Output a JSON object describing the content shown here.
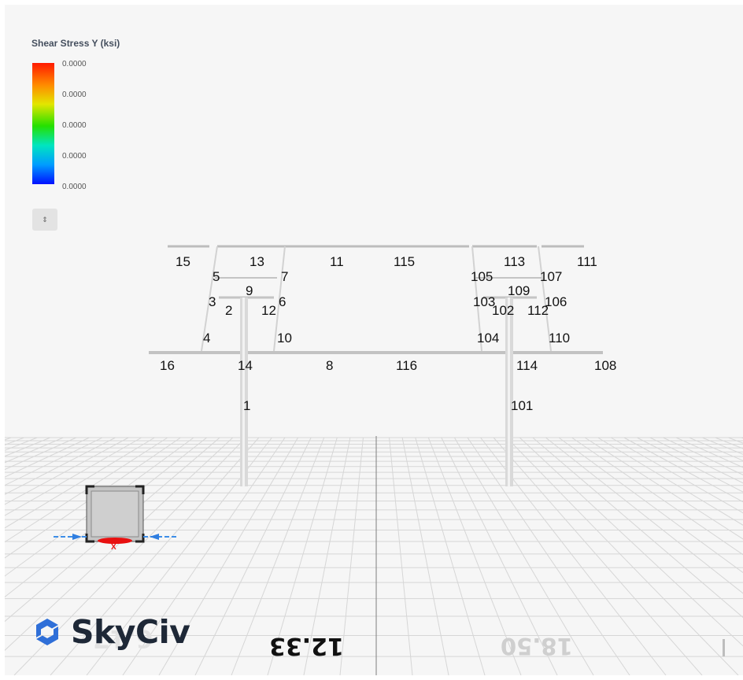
{
  "legend": {
    "title": "Shear Stress Y (ksi)",
    "values": [
      "0.0000",
      "0.0000",
      "0.0000",
      "0.0000",
      "0.0000"
    ],
    "colors": [
      "#ff1a00",
      "#ff8a00",
      "#e3e600",
      "#25e000",
      "#00e5c0",
      "#009cff",
      "#0010ff"
    ]
  },
  "toggle": {
    "icon": "sort-arrows-icon",
    "glyph": "⇕"
  },
  "members": [
    {
      "label": "15"
    },
    {
      "label": "13"
    },
    {
      "label": "11"
    },
    {
      "label": "115"
    },
    {
      "label": "113"
    },
    {
      "label": "111"
    },
    {
      "label": "5"
    },
    {
      "label": "7"
    },
    {
      "label": "105"
    },
    {
      "label": "107"
    },
    {
      "label": "9"
    },
    {
      "label": "109"
    },
    {
      "label": "3"
    },
    {
      "label": "2"
    },
    {
      "label": "12"
    },
    {
      "label": "6"
    },
    {
      "label": "103"
    },
    {
      "label": "102"
    },
    {
      "label": "112"
    },
    {
      "label": "106"
    },
    {
      "label": "4"
    },
    {
      "label": "10"
    },
    {
      "label": "104"
    },
    {
      "label": "110"
    },
    {
      "label": "16"
    },
    {
      "label": "14"
    },
    {
      "label": "8"
    },
    {
      "label": "116"
    },
    {
      "label": "114"
    },
    {
      "label": "108"
    },
    {
      "label": "1"
    },
    {
      "label": "101"
    }
  ],
  "grid_axis_labels": [
    "12.33",
    "18.50"
  ],
  "grid_axis_faded_labels": [
    "6.17"
  ],
  "view_cube": {
    "axis": "X"
  },
  "logo": {
    "text": "SkyCiv",
    "icon": "skyciv-logo-icon",
    "color": "#2f6fd8"
  }
}
